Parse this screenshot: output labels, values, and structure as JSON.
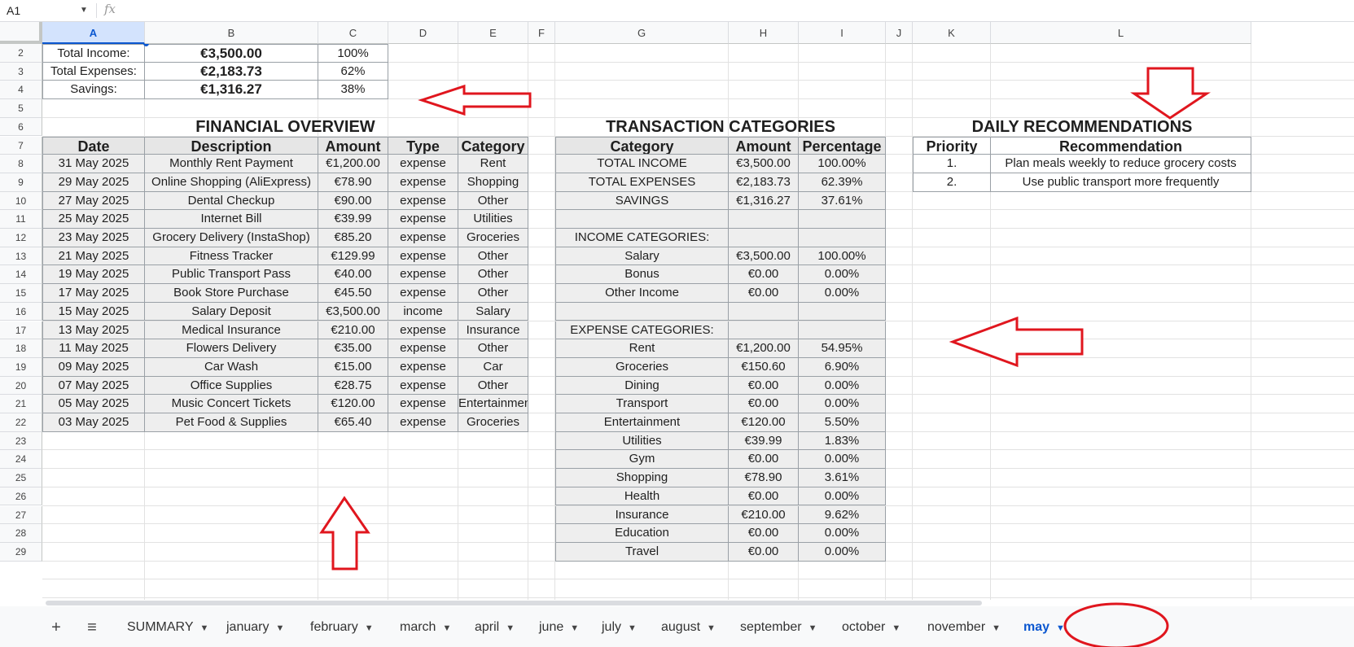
{
  "formula_bar": {
    "name_box": "A1",
    "fx": "fx"
  },
  "columns": [
    "A",
    "B",
    "C",
    "D",
    "E",
    "F",
    "G",
    "H",
    "I",
    "J",
    "K",
    "L"
  ],
  "rows": [
    "2",
    "3",
    "4",
    "5",
    "6",
    "7",
    "8",
    "9",
    "10",
    "11",
    "12",
    "13",
    "14",
    "15",
    "16",
    "17",
    "18",
    "19",
    "20",
    "21",
    "22",
    "23",
    "24",
    "25",
    "26",
    "27",
    "28",
    "29"
  ],
  "summary": [
    {
      "label": "Total Income:",
      "value": "€3,500.00",
      "pct": "100%"
    },
    {
      "label": "Total Expenses:",
      "value": "€2,183.73",
      "pct": "62%"
    },
    {
      "label": "Savings:",
      "value": "€1,316.27",
      "pct": "38%"
    }
  ],
  "financial_overview": {
    "title": "FINANCIAL OVERVIEW",
    "headers": [
      "Date",
      "Description",
      "Amount",
      "Type",
      "Category"
    ],
    "rows": [
      [
        "31 May 2025",
        "Monthly Rent Payment",
        "€1,200.00",
        "expense",
        "Rent"
      ],
      [
        "29 May 2025",
        "Online Shopping (AliExpress)",
        "€78.90",
        "expense",
        "Shopping"
      ],
      [
        "27 May 2025",
        "Dental Checkup",
        "€90.00",
        "expense",
        "Other"
      ],
      [
        "25 May 2025",
        "Internet Bill",
        "€39.99",
        "expense",
        "Utilities"
      ],
      [
        "23 May 2025",
        "Grocery Delivery (InstaShop)",
        "€85.20",
        "expense",
        "Groceries"
      ],
      [
        "21 May 2025",
        "Fitness Tracker",
        "€129.99",
        "expense",
        "Other"
      ],
      [
        "19 May 2025",
        "Public Transport Pass",
        "€40.00",
        "expense",
        "Other"
      ],
      [
        "17 May 2025",
        "Book Store Purchase",
        "€45.50",
        "expense",
        "Other"
      ],
      [
        "15 May 2025",
        "Salary Deposit",
        "€3,500.00",
        "income",
        "Salary"
      ],
      [
        "13 May 2025",
        "Medical Insurance",
        "€210.00",
        "expense",
        "Insurance"
      ],
      [
        "11 May 2025",
        "Flowers Delivery",
        "€35.00",
        "expense",
        "Other"
      ],
      [
        "09 May 2025",
        "Car Wash",
        "€15.00",
        "expense",
        "Car"
      ],
      [
        "07 May 2025",
        "Office Supplies",
        "€28.75",
        "expense",
        "Other"
      ],
      [
        "05 May 2025",
        "Music Concert Tickets",
        "€120.00",
        "expense",
        "Entertainment"
      ],
      [
        "03 May 2025",
        "Pet Food & Supplies",
        "€65.40",
        "expense",
        "Groceries"
      ]
    ]
  },
  "transaction_categories": {
    "title": "TRANSACTION CATEGORIES",
    "headers": [
      "Category",
      "Amount",
      "Percentage"
    ],
    "rows": [
      [
        "TOTAL INCOME",
        "€3,500.00",
        "100.00%"
      ],
      [
        "TOTAL EXPENSES",
        "€2,183.73",
        "62.39%"
      ],
      [
        "SAVINGS",
        "€1,316.27",
        "37.61%"
      ],
      [
        "",
        "",
        ""
      ],
      [
        "INCOME CATEGORIES:",
        "",
        ""
      ],
      [
        "Salary",
        "€3,500.00",
        "100.00%"
      ],
      [
        "Bonus",
        "€0.00",
        "0.00%"
      ],
      [
        "Other Income",
        "€0.00",
        "0.00%"
      ],
      [
        "",
        "",
        ""
      ],
      [
        "EXPENSE CATEGORIES:",
        "",
        ""
      ],
      [
        "Rent",
        "€1,200.00",
        "54.95%"
      ],
      [
        "Groceries",
        "€150.60",
        "6.90%"
      ],
      [
        "Dining",
        "€0.00",
        "0.00%"
      ],
      [
        "Transport",
        "€0.00",
        "0.00%"
      ],
      [
        "Entertainment",
        "€120.00",
        "5.50%"
      ],
      [
        "Utilities",
        "€39.99",
        "1.83%"
      ],
      [
        "Gym",
        "€0.00",
        "0.00%"
      ],
      [
        "Shopping",
        "€78.90",
        "3.61%"
      ],
      [
        "Health",
        "€0.00",
        "0.00%"
      ],
      [
        "Insurance",
        "€210.00",
        "9.62%"
      ],
      [
        "Education",
        "€0.00",
        "0.00%"
      ],
      [
        "Travel",
        "€0.00",
        "0.00%"
      ]
    ]
  },
  "daily_recommendations": {
    "title": "DAILY RECOMMENDATIONS",
    "headers": [
      "Priority",
      "Recommendation"
    ],
    "rows": [
      [
        "1.",
        "Plan meals weekly to reduce grocery costs"
      ],
      [
        "2.",
        "Use public transport more frequently"
      ]
    ]
  },
  "sheet_tabs": [
    "SUMMARY",
    "january",
    "february",
    "march",
    "april",
    "june",
    "july",
    "august",
    "september",
    "october",
    "november",
    "may"
  ],
  "active_tab": "may",
  "annotation_color": "#e0161e"
}
